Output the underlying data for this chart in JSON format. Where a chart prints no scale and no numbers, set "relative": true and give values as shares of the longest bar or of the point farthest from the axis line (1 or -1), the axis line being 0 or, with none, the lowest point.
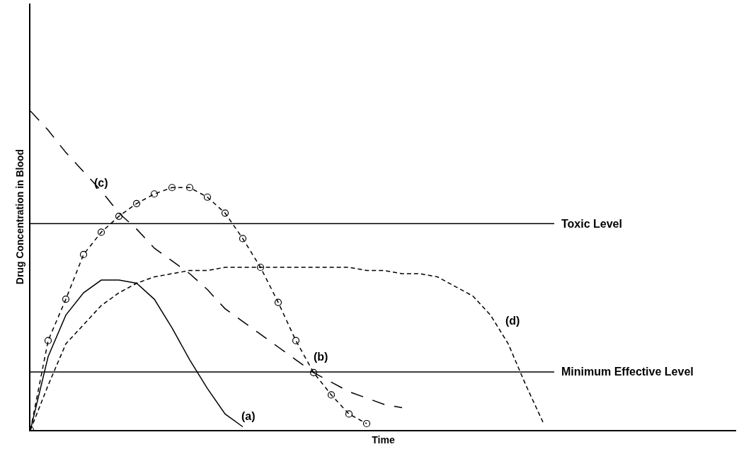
{
  "chart_data": {
    "type": "line",
    "relative": true,
    "xlabel": "Time",
    "ylabel": "Drug Concentration in Blood",
    "categories": [
      null,
      null,
      null,
      null,
      null,
      null,
      null,
      null,
      null,
      null,
      null,
      null,
      null,
      null,
      null,
      null,
      null,
      null,
      null,
      null,
      null,
      null,
      null,
      null,
      null,
      null,
      null,
      null,
      null,
      null
    ],
    "series": [
      {
        "name": "(a)",
        "color": "#000000",
        "line_style": "solid",
        "marker": "none",
        "values": [
          0,
          0.23,
          0.36,
          0.43,
          0.47,
          0.47,
          0.46,
          0.41,
          0.32,
          0.22,
          0.13,
          0.05,
          0.01,
          null,
          null,
          null,
          null,
          null,
          null,
          null,
          null,
          null,
          null,
          null,
          null,
          null,
          null,
          null,
          null,
          null
        ]
      },
      {
        "name": "(b)",
        "color": "#000000",
        "line_style": "dashed",
        "marker": "circle",
        "values": [
          0,
          0.28,
          0.41,
          0.55,
          0.62,
          0.67,
          0.71,
          0.74,
          0.76,
          0.76,
          0.73,
          0.68,
          0.6,
          0.51,
          0.4,
          0.28,
          0.18,
          0.11,
          0.05,
          0.02,
          null,
          null,
          null,
          null,
          null,
          null,
          null,
          null,
          null,
          null
        ]
      },
      {
        "name": "(c)",
        "color": "#000000",
        "line_style": "dashed",
        "marker": "none",
        "values": [
          1,
          0.94,
          0.87,
          0.81,
          0.75,
          0.68,
          0.63,
          0.57,
          0.53,
          0.49,
          0.44,
          0.38,
          0.34,
          0.3,
          0.26,
          0.22,
          0.18,
          0.15,
          0.12,
          0.1,
          0.08,
          0.07,
          null,
          null,
          null,
          null,
          null,
          null,
          null,
          null
        ]
      },
      {
        "name": "(d)",
        "color": "#000000",
        "line_style": "dashed",
        "marker": "none",
        "values": [
          0,
          0.14,
          0.27,
          0.33,
          0.39,
          0.43,
          0.46,
          0.48,
          0.49,
          0.5,
          0.5,
          0.51,
          0.51,
          0.51,
          0.51,
          0.51,
          0.51,
          0.51,
          0.51,
          0.5,
          0.5,
          0.49,
          0.49,
          0.48,
          0.45,
          0.42,
          0.36,
          0.27,
          0.14,
          0.02
        ]
      }
    ],
    "ref_lines": [
      {
        "axis": "y",
        "value": 0.647,
        "label": "Toxic Level",
        "color": "#000000"
      },
      {
        "axis": "y",
        "value": 0.182,
        "label": "Minimum Effective Level",
        "color": "#000000"
      }
    ]
  }
}
